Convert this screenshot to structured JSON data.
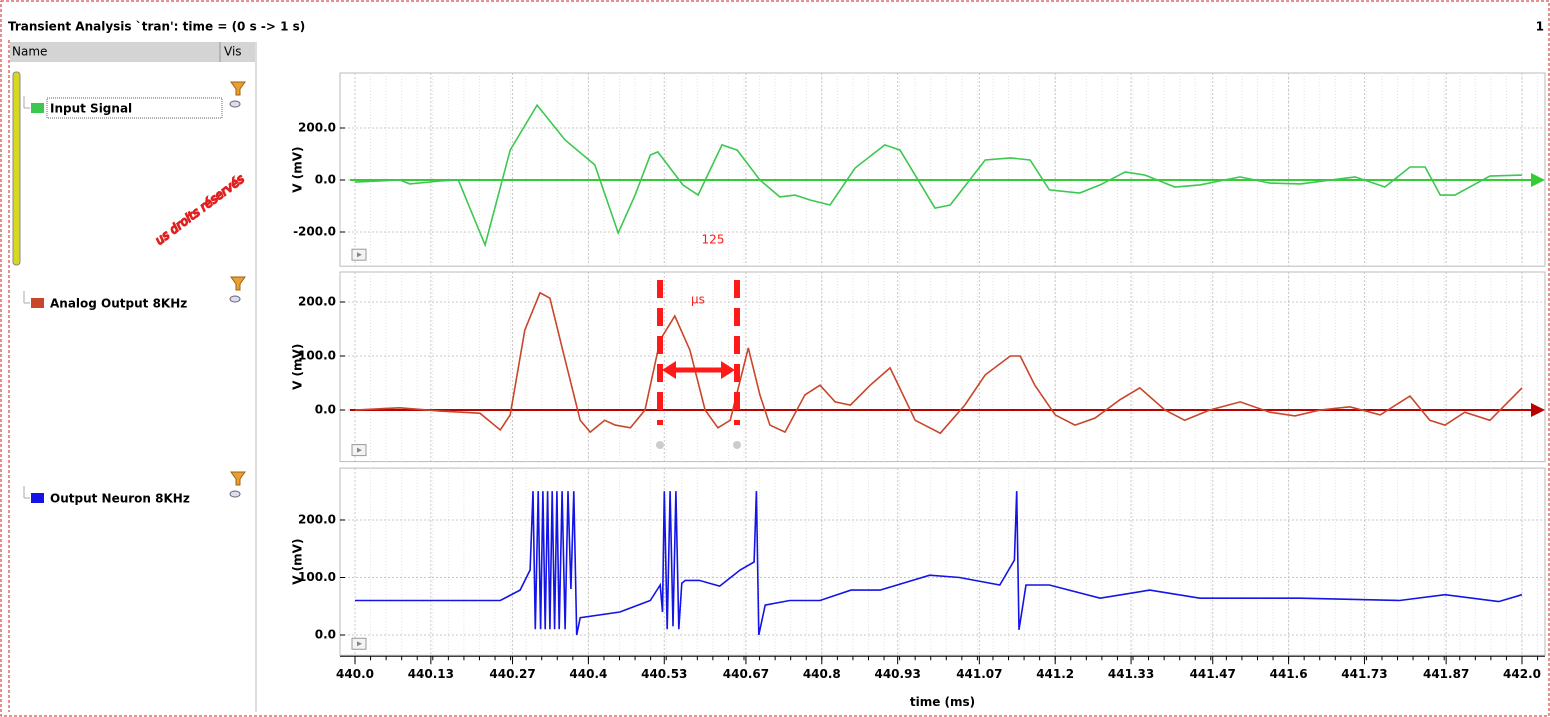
{
  "window": {
    "title": "Transient Analysis `tran': time = (0 s -> 1 s)",
    "corner": "1"
  },
  "panel": {
    "columns": [
      "Name",
      "Vis"
    ]
  },
  "annotation": {
    "interval": "125",
    "unit": "μs"
  },
  "watermark": "us droits réservés",
  "chart_data": [
    {
      "type": "line",
      "ylabel": "V (mV)",
      "xlim": [
        440,
        442
      ],
      "xticks": [
        {
          "value": 440,
          "label": "440.0"
        },
        440.13,
        440.27,
        440.4,
        440.53,
        440.67,
        440.8,
        440.93,
        441.07,
        441.2,
        441.33,
        441.47,
        441.6,
        441.73,
        441.87,
        {
          "value": 442,
          "label": "442.0"
        }
      ],
      "ylim": [
        -320,
        400
      ],
      "yticks": [
        {
          "value": -200,
          "label": "-200.0"
        },
        {
          "value": 0,
          "label": "0.0"
        },
        {
          "value": 200,
          "label": "200.0"
        }
      ],
      "grid": true,
      "x": [
        440.0,
        440.077,
        440.094,
        440.146,
        440.177,
        440.223,
        440.266,
        440.312,
        440.36,
        440.411,
        440.451,
        440.48,
        440.506,
        440.519,
        440.562,
        440.588,
        440.629,
        440.655,
        440.694,
        440.728,
        440.754,
        440.78,
        440.814,
        440.857,
        440.908,
        440.934,
        440.994,
        441.02,
        441.08,
        441.123,
        441.157,
        441.19,
        441.242,
        441.277,
        441.32,
        441.354,
        441.405,
        441.448,
        441.517,
        441.568,
        441.62,
        441.714,
        441.765,
        441.808,
        441.834,
        441.86,
        441.885,
        441.945,
        442.0
      ],
      "series": [
        {
          "name": "Input Signal",
          "color": "#3cc850",
          "values": [
            -8,
            0,
            -15,
            -4,
            0,
            -250,
            115,
            288,
            154,
            58,
            -204,
            -58,
            96,
            108,
            -19,
            -58,
            135,
            115,
            0,
            -65,
            -58,
            -77,
            -96,
            46,
            135,
            115,
            -108,
            -96,
            77,
            85,
            77,
            -38,
            -50,
            -19,
            31,
            19,
            -27,
            -19,
            12,
            -12,
            -15,
            12,
            -27,
            50,
            50,
            -58,
            -58,
            15,
            19
          ]
        }
      ]
    },
    {
      "type": "line",
      "ylabel": "V (mV)",
      "xlim": [
        440,
        442
      ],
      "xticks": [
        {
          "value": 440,
          "label": "440.0"
        },
        440.13,
        440.27,
        440.4,
        440.53,
        440.67,
        440.8,
        440.93,
        441.07,
        441.2,
        441.33,
        441.47,
        441.6,
        441.73,
        441.87,
        {
          "value": 442,
          "label": "442.0"
        }
      ],
      "ylim": [
        -90,
        250
      ],
      "yticks": [
        {
          "value": 0,
          "label": "0.0"
        },
        {
          "value": 100,
          "label": "100.0"
        },
        {
          "value": 200,
          "label": "200.0"
        }
      ],
      "grid": true,
      "x": [
        440.0,
        440.077,
        440.146,
        440.214,
        440.249,
        440.266,
        440.291,
        440.317,
        440.334,
        440.36,
        440.386,
        440.403,
        440.428,
        440.446,
        440.472,
        440.497,
        440.523,
        440.548,
        440.574,
        440.6,
        440.622,
        440.643,
        440.674,
        440.694,
        440.711,
        440.737,
        440.771,
        440.797,
        440.823,
        440.849,
        440.883,
        440.917,
        440.96,
        441.003,
        441.045,
        441.08,
        441.123,
        441.14,
        441.165,
        441.2,
        441.234,
        441.268,
        441.311,
        441.345,
        441.388,
        441.422,
        441.465,
        441.517,
        441.568,
        441.611,
        441.654,
        441.705,
        441.757,
        441.808,
        441.842,
        441.868,
        441.902,
        441.945,
        442.0
      ],
      "series": [
        {
          "name": "Analog Output 8KHz",
          "color": "#c8462a",
          "values": [
            0,
            4,
            -2,
            -6,
            -37,
            -9,
            148,
            217,
            207,
            93,
            -19,
            -41,
            -19,
            -28,
            -33,
            0,
            130,
            174,
            111,
            0,
            -33,
            -19,
            115,
            28,
            -28,
            -41,
            28,
            46,
            15,
            9,
            46,
            78,
            -19,
            -43,
            9,
            65,
            100,
            100,
            46,
            -9,
            -28,
            -15,
            19,
            41,
            0,
            -19,
            0,
            15,
            -4,
            -11,
            0,
            6,
            -9,
            26,
            -19,
            -28,
            -4,
            -19,
            41
          ]
        }
      ]
    },
    {
      "type": "line",
      "ylabel": "V (mV)",
      "xlabel": "time (ms)",
      "xlim": [
        440,
        442
      ],
      "xticks": [
        {
          "value": 440,
          "label": "440.0"
        },
        440.13,
        440.27,
        440.4,
        440.53,
        440.67,
        440.8,
        440.93,
        441.07,
        441.2,
        441.33,
        441.47,
        441.6,
        441.73,
        441.87,
        {
          "value": 442,
          "label": "442.0"
        }
      ],
      "ylim": [
        -30,
        285
      ],
      "yticks": [
        {
          "value": 0,
          "label": "0.0"
        },
        {
          "value": 100,
          "label": "100.0"
        },
        {
          "value": 200,
          "label": "200.0"
        }
      ],
      "grid": true,
      "x": [
        440.0,
        440.249,
        440.283,
        440.3,
        440.305,
        440.309,
        440.314,
        440.318,
        440.322,
        440.326,
        440.33,
        440.334,
        440.338,
        440.342,
        440.346,
        440.35,
        440.355,
        440.36,
        440.365,
        440.37,
        440.375,
        440.38,
        440.386,
        440.454,
        440.506,
        440.523,
        440.527,
        440.53,
        440.535,
        440.54,
        440.545,
        440.55,
        440.555,
        440.56,
        440.566,
        440.59,
        440.625,
        440.66,
        440.684,
        440.688,
        440.692,
        440.703,
        440.745,
        440.797,
        440.85,
        440.9,
        440.985,
        441.036,
        441.105,
        441.13,
        441.134,
        441.138,
        441.15,
        441.19,
        441.277,
        441.362,
        441.448,
        441.62,
        441.79,
        441.868,
        441.96,
        442.0
      ],
      "series": [
        {
          "name": "Output Neuron 8KHz",
          "color": "#1414e6",
          "values": [
            60,
            60,
            78,
            113,
            250,
            10,
            250,
            10,
            250,
            10,
            250,
            10,
            250,
            10,
            250,
            10,
            250,
            10,
            250,
            80,
            250,
            0,
            30,
            40,
            60,
            87,
            40,
            250,
            10,
            250,
            15,
            250,
            10,
            90,
            95,
            95,
            85,
            113,
            127,
            250,
            0,
            52,
            60,
            60,
            78,
            78,
            104,
            100,
            87,
            130,
            250,
            9,
            87,
            87,
            64,
            78,
            64,
            64,
            60,
            70,
            58,
            70
          ]
        }
      ]
    }
  ]
}
